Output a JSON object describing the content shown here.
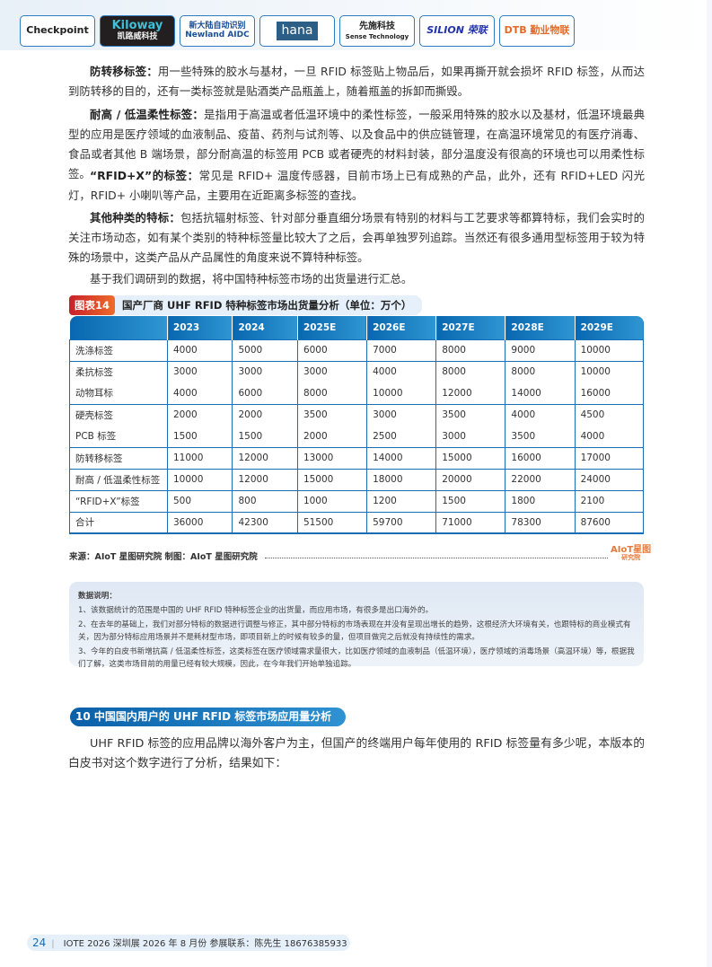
{
  "logos": [
    "Checkpoint",
    "Kiloway",
    "凯路威科技",
    "新大陆自动识别",
    "Newland AIDC",
    "hana",
    "先施科技",
    "Sense Technology",
    "SILION 荣联",
    "DTB 勤业物联"
  ],
  "paragraphs": [
    {
      "bold": "防转移标签：",
      "text": "用一些特殊的胶水与基材，一旦 RFID 标签贴上物品后，如果再撕开就会损坏 RFID 标签，从而达到防转移的目的，还有一类标签就是贴酒类产品瓶盖上，随着瓶盖的拆卸而撕毁。"
    },
    {
      "bold": "耐高 / 低温柔性标签：",
      "text": "是指用于高温或者低温环境中的柔性标签，一般采用特殊的胶水以及基材，低温环境最典型的应用是医疗领域的血液制品、疫苗、药剂与试剂等、以及食品中的供应链管理，在高温环境常见的有医疗消毒、食品或者其他 B 端场景，部分耐高温的标签用 PCB 或者硬壳的材料封装，部分温度没有很高的环境也可以用柔性标签。"
    },
    {
      "bold": "“RFID+X”的标签：",
      "text": "常见是 RFID+ 温度传感器，目前市场上已有成熟的产品，此外，还有 RFID+LED 闪光灯，RFID+ 小喇叭等产品，主要用在近距离多标签的查找。"
    },
    {
      "bold": "其他种类的特标：",
      "text": "包括抗辐射标签、针对部分垂直细分场景有特别的材料与工艺要求等都算特标，我们会实时的关注市场动态，如有某个类别的特种标签量比较大了之后，会再单独罗列追踪。当然还有很多通用型标签用于较为特殊的场景中，这类产品从产品属性的角度来说不算特种标签。"
    },
    {
      "bold": "",
      "text": "基于我们调研到的数据，将中国特种标签市场的出货量进行汇总。"
    }
  ],
  "figure": {
    "number": "图表14",
    "title": "国产厂商 UHF RFID 特种标签市场出货量分析（单位：万个）"
  },
  "table": {
    "headers": [
      "",
      "2023",
      "2024",
      "2025E",
      "2026E",
      "2027E",
      "2028E",
      "2029E"
    ],
    "rows": [
      [
        "洗涤标签",
        "4000",
        "5000",
        "6000",
        "7000",
        "8000",
        "9000",
        "10000"
      ],
      [
        "柔抗标签",
        "3000",
        "3000",
        "3000",
        "4000",
        "8000",
        "8000",
        "10000"
      ],
      [
        "动物耳标",
        "4000",
        "6000",
        "8000",
        "10000",
        "12000",
        "14000",
        "16000"
      ],
      [
        "硬壳标签",
        "2000",
        "2000",
        "3500",
        "3000",
        "3500",
        "4000",
        "4500"
      ],
      [
        "PCB 标签",
        "1500",
        "1500",
        "2000",
        "2500",
        "3000",
        "3500",
        "4000"
      ],
      [
        "防转移标签",
        "11000",
        "12000",
        "13000",
        "14000",
        "15000",
        "16000",
        "17000"
      ],
      [
        "耐高 / 低温柔性标签",
        "10000",
        "12000",
        "15000",
        "18000",
        "20000",
        "22000",
        "24000"
      ],
      [
        "“RFID+X”标签",
        "500",
        "800",
        "1000",
        "1200",
        "1500",
        "1800",
        "2100"
      ],
      [
        "合计",
        "36000",
        "42300",
        "51500",
        "59700",
        "71000",
        "78300",
        "87600"
      ]
    ]
  },
  "source": "来源：AIoT 星图研究院    制图：AIoT 星图研究院",
  "watermark": "AIoT星图 研究院",
  "notes": {
    "title": "数据说明：",
    "items": [
      "1、该数据统计的范围是中国的 UHF RFID 特种标签企业的出货量，而应用市场，有很多是出口海外的。",
      "2、在去年的基础上，我们对部分特标的数据进行调整与修正，其中部分特标的市场表现在并没有呈现出增长的趋势，这根经济大环境有关，也跟特标的商业模式有关，因为部分特标应用场景并不是耗材型市场，即项目新上的时候有较多的量，但项目做完之后就没有持续性的需求。",
      "3、今年的白皮书新增抗高 / 低温柔性标签，这类标签在医疗领域需求量很大，比如医疗领域的血液制品（低温环境），医疗领域的消毒场景（高温环境）等，根据我们了解，这类市场目前的用量已经有较大规模，因此，在今年我们开始单独追踪。"
    ]
  },
  "section": {
    "title": "10 中国国内用户的 UHF RFID 标签市场应用量分析"
  },
  "section_paragraph": "UHF RFID 标签的应用品牌以海外客户为主，但国产的终端用户每年使用的 RFID 标签量有多少呢，本版本的白皮书对这个数字进行了分析，结果如下：",
  "footer": {
    "page": "24",
    "text": "IOTE 2026 深圳展 2026 年 8 月份  参展联系：陈先生 18676385933"
  }
}
